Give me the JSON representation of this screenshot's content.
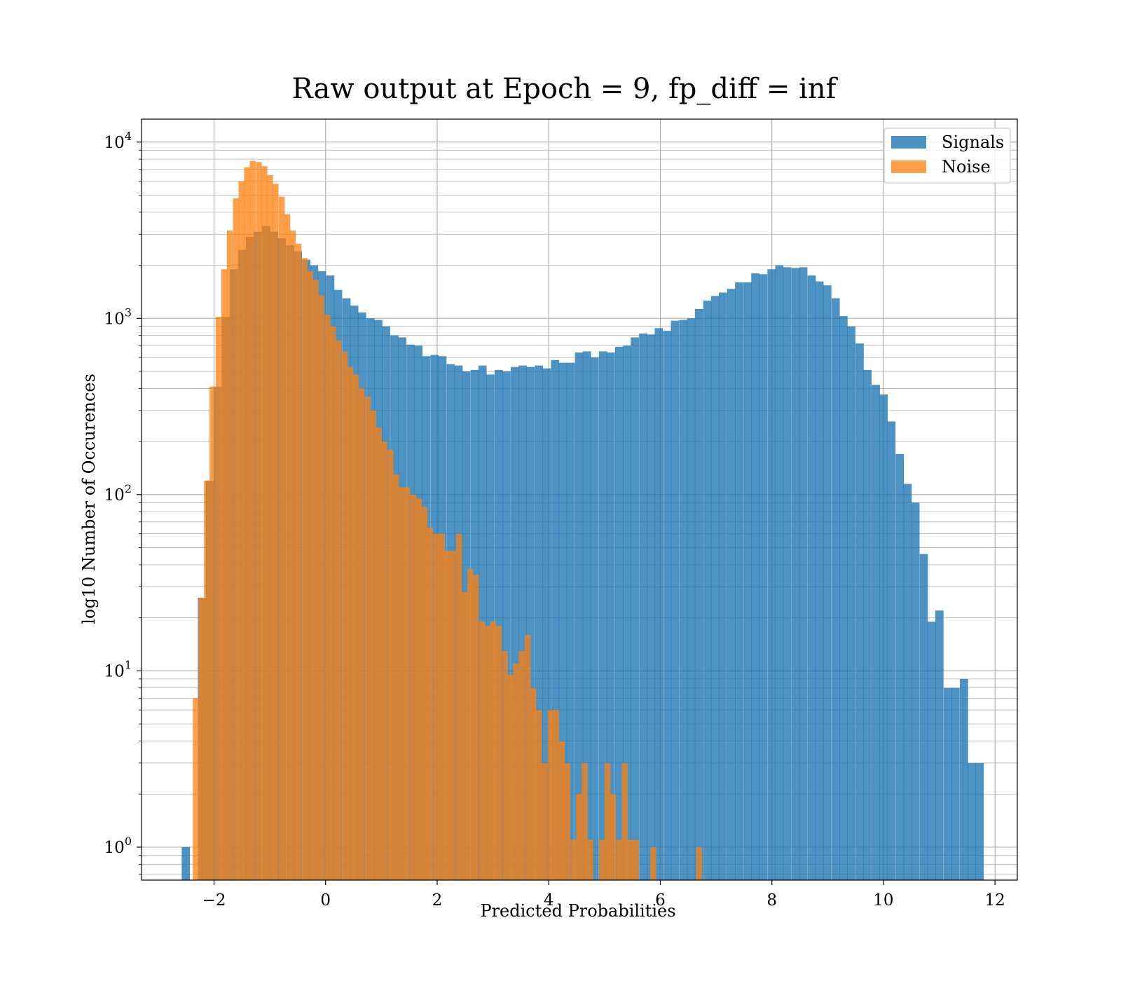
{
  "chart_data": {
    "type": "bar",
    "title": "Raw output at Epoch = 9, fp_diff = inf",
    "xlabel": "Predicted Probabilities",
    "ylabel": "log10 Number of Occurences",
    "xlim": [
      -3.3,
      12.4
    ],
    "ylim": [
      0.65,
      13500
    ],
    "yscale": "log",
    "grid": true,
    "legend_position": "top-right",
    "x_ticks": [
      -2,
      0,
      2,
      4,
      6,
      8,
      10,
      12
    ],
    "x_tick_labels": [
      "−2",
      "0",
      "2",
      "4",
      "6",
      "8",
      "10",
      "12"
    ],
    "y_ticks": [
      {
        "exp": 0,
        "base": "10",
        "sup": "0"
      },
      {
        "exp": 1,
        "base": "10",
        "sup": "1"
      },
      {
        "exp": 2,
        "base": "10",
        "sup": "2"
      },
      {
        "exp": 3,
        "base": "10",
        "sup": "3"
      },
      {
        "exp": 4,
        "base": "10",
        "sup": "4"
      }
    ],
    "series": [
      {
        "name": "Signals",
        "color": "#1f77b4",
        "opacity": 0.8,
        "bin_width": 0.1435,
        "bins": [
          [
            -2.58,
            1
          ],
          [
            -2.44,
            0
          ],
          [
            -2.29,
            26
          ],
          [
            -2.15,
            120
          ],
          [
            -2.01,
            410
          ],
          [
            -1.86,
            1020
          ],
          [
            -1.72,
            1900
          ],
          [
            -1.57,
            2450
          ],
          [
            -1.43,
            2900
          ],
          [
            -1.29,
            3100
          ],
          [
            -1.14,
            3350
          ],
          [
            -1.0,
            3100
          ],
          [
            -0.86,
            2850
          ],
          [
            -0.71,
            2600
          ],
          [
            -0.57,
            2400
          ],
          [
            -0.42,
            2150
          ],
          [
            -0.28,
            2000
          ],
          [
            -0.14,
            1850
          ],
          [
            0.01,
            1750
          ],
          [
            0.15,
            1450
          ],
          [
            0.3,
            1300
          ],
          [
            0.44,
            1180
          ],
          [
            0.58,
            1080
          ],
          [
            0.73,
            1000
          ],
          [
            0.87,
            980
          ],
          [
            1.01,
            900
          ],
          [
            1.16,
            800
          ],
          [
            1.3,
            780
          ],
          [
            1.45,
            710
          ],
          [
            1.59,
            700
          ],
          [
            1.73,
            610
          ],
          [
            1.88,
            620
          ],
          [
            2.02,
            610
          ],
          [
            2.17,
            550
          ],
          [
            2.31,
            540
          ],
          [
            2.45,
            500
          ],
          [
            2.6,
            510
          ],
          [
            2.74,
            540
          ],
          [
            2.88,
            480
          ],
          [
            3.03,
            510
          ],
          [
            3.17,
            500
          ],
          [
            3.32,
            530
          ],
          [
            3.46,
            540
          ],
          [
            3.6,
            530
          ],
          [
            3.75,
            540
          ],
          [
            3.89,
            520
          ],
          [
            4.04,
            580
          ],
          [
            4.18,
            560
          ],
          [
            4.32,
            560
          ],
          [
            4.47,
            640
          ],
          [
            4.61,
            650
          ],
          [
            4.75,
            600
          ],
          [
            4.9,
            650
          ],
          [
            5.04,
            640
          ],
          [
            5.19,
            690
          ],
          [
            5.33,
            700
          ],
          [
            5.47,
            780
          ],
          [
            5.62,
            820
          ],
          [
            5.76,
            810
          ],
          [
            5.9,
            880
          ],
          [
            6.05,
            850
          ],
          [
            6.19,
            970
          ],
          [
            6.34,
            980
          ],
          [
            6.48,
            1000
          ],
          [
            6.62,
            1130
          ],
          [
            6.77,
            1260
          ],
          [
            6.91,
            1340
          ],
          [
            7.05,
            1400
          ],
          [
            7.2,
            1470
          ],
          [
            7.34,
            1600
          ],
          [
            7.49,
            1600
          ],
          [
            7.63,
            1800
          ],
          [
            7.77,
            1780
          ],
          [
            7.92,
            1900
          ],
          [
            8.06,
            2000
          ],
          [
            8.2,
            1950
          ],
          [
            8.35,
            1930
          ],
          [
            8.49,
            1950
          ],
          [
            8.64,
            1750
          ],
          [
            8.78,
            1620
          ],
          [
            8.92,
            1540
          ],
          [
            9.07,
            1300
          ],
          [
            9.21,
            1030
          ],
          [
            9.35,
            900
          ],
          [
            9.5,
            720
          ],
          [
            9.64,
            510
          ],
          [
            9.79,
            420
          ],
          [
            9.93,
            370
          ],
          [
            10.07,
            260
          ],
          [
            10.22,
            170
          ],
          [
            10.36,
            115
          ],
          [
            10.5,
            90
          ],
          [
            10.65,
            46
          ],
          [
            10.79,
            19
          ],
          [
            10.93,
            22
          ],
          [
            11.08,
            8
          ],
          [
            11.22,
            8
          ],
          [
            11.37,
            9
          ],
          [
            11.51,
            3
          ],
          [
            11.65,
            3
          ]
        ]
      },
      {
        "name": "Noise",
        "color": "#ff7f0e",
        "opacity": 0.75,
        "bin_width": 0.1025,
        "bins": [
          [
            -2.38,
            7
          ],
          [
            -2.28,
            26
          ],
          [
            -2.18,
            120
          ],
          [
            -2.08,
            410
          ],
          [
            -1.97,
            1020
          ],
          [
            -1.87,
            1900
          ],
          [
            -1.77,
            3150
          ],
          [
            -1.66,
            4800
          ],
          [
            -1.56,
            6000
          ],
          [
            -1.46,
            7200
          ],
          [
            -1.36,
            7800
          ],
          [
            -1.25,
            7700
          ],
          [
            -1.15,
            7300
          ],
          [
            -1.05,
            6500
          ],
          [
            -0.95,
            5800
          ],
          [
            -0.84,
            4900
          ],
          [
            -0.74,
            3900
          ],
          [
            -0.64,
            3150
          ],
          [
            -0.54,
            2650
          ],
          [
            -0.43,
            2200
          ],
          [
            -0.33,
            1850
          ],
          [
            -0.23,
            1650
          ],
          [
            -0.13,
            1350
          ],
          [
            -0.02,
            1050
          ],
          [
            0.08,
            900
          ],
          [
            0.18,
            750
          ],
          [
            0.29,
            650
          ],
          [
            0.39,
            530
          ],
          [
            0.49,
            480
          ],
          [
            0.59,
            400
          ],
          [
            0.7,
            360
          ],
          [
            0.8,
            300
          ],
          [
            0.9,
            240
          ],
          [
            1.0,
            200
          ],
          [
            1.11,
            180
          ],
          [
            1.21,
            130
          ],
          [
            1.31,
            110
          ],
          [
            1.41,
            110
          ],
          [
            1.52,
            100
          ],
          [
            1.62,
            95
          ],
          [
            1.72,
            85
          ],
          [
            1.82,
            65
          ],
          [
            1.93,
            60
          ],
          [
            2.03,
            60
          ],
          [
            2.13,
            48
          ],
          [
            2.23,
            48
          ],
          [
            2.34,
            60
          ],
          [
            2.44,
            28
          ],
          [
            2.54,
            38
          ],
          [
            2.64,
            35
          ],
          [
            2.75,
            19
          ],
          [
            2.85,
            18
          ],
          [
            2.95,
            19
          ],
          [
            3.05,
            18
          ],
          [
            3.16,
            13
          ],
          [
            3.26,
            9.5
          ],
          [
            3.36,
            11
          ],
          [
            3.46,
            13
          ],
          [
            3.57,
            16
          ],
          [
            3.67,
            8
          ],
          [
            3.77,
            6
          ],
          [
            3.87,
            3
          ],
          [
            3.98,
            6
          ],
          [
            4.08,
            6
          ],
          [
            4.18,
            4
          ],
          [
            4.28,
            3
          ],
          [
            4.39,
            1.1
          ],
          [
            4.49,
            2
          ],
          [
            4.59,
            3
          ],
          [
            4.69,
            1.1
          ],
          [
            4.8,
            0
          ],
          [
            4.9,
            1.1
          ],
          [
            5.0,
            3
          ],
          [
            5.1,
            2
          ],
          [
            5.21,
            1.1
          ],
          [
            5.31,
            3
          ],
          [
            5.41,
            1.1
          ],
          [
            5.51,
            1.1
          ],
          [
            5.62,
            0
          ],
          [
            5.72,
            0
          ],
          [
            5.82,
            1
          ],
          [
            5.92,
            0
          ],
          [
            6.03,
            0
          ],
          [
            6.13,
            0
          ],
          [
            6.23,
            0
          ],
          [
            6.33,
            0
          ],
          [
            6.44,
            0
          ],
          [
            6.54,
            0
          ],
          [
            6.64,
            1
          ]
        ]
      }
    ]
  }
}
